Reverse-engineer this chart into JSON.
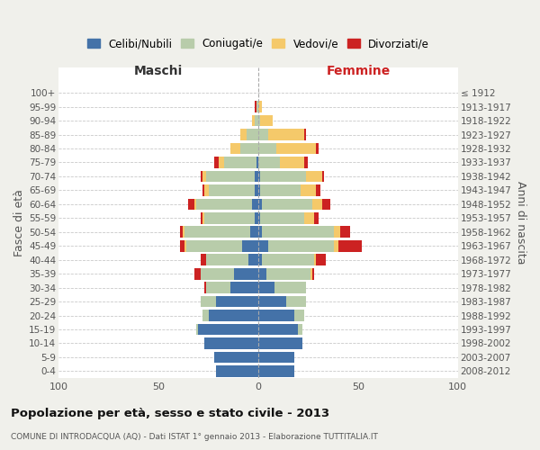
{
  "age_groups": [
    "0-4",
    "5-9",
    "10-14",
    "15-19",
    "20-24",
    "25-29",
    "30-34",
    "35-39",
    "40-44",
    "45-49",
    "50-54",
    "55-59",
    "60-64",
    "65-69",
    "70-74",
    "75-79",
    "80-84",
    "85-89",
    "90-94",
    "95-99",
    "100+"
  ],
  "birth_years": [
    "2008-2012",
    "2003-2007",
    "1998-2002",
    "1993-1997",
    "1988-1992",
    "1983-1987",
    "1978-1982",
    "1973-1977",
    "1968-1972",
    "1963-1967",
    "1958-1962",
    "1953-1957",
    "1948-1952",
    "1943-1947",
    "1938-1942",
    "1933-1937",
    "1928-1932",
    "1923-1927",
    "1918-1922",
    "1913-1917",
    "≤ 1912"
  ],
  "maschi": {
    "celibi": [
      21,
      22,
      27,
      30,
      25,
      21,
      14,
      12,
      5,
      8,
      4,
      2,
      3,
      2,
      2,
      1,
      0,
      0,
      0,
      0,
      0
    ],
    "coniugati": [
      0,
      0,
      0,
      1,
      3,
      8,
      12,
      17,
      21,
      28,
      33,
      25,
      28,
      23,
      24,
      16,
      9,
      6,
      2,
      1,
      0
    ],
    "vedovi": [
      0,
      0,
      0,
      0,
      0,
      0,
      0,
      0,
      0,
      1,
      1,
      1,
      1,
      2,
      2,
      3,
      5,
      3,
      1,
      0,
      0
    ],
    "divorziati": [
      0,
      0,
      0,
      0,
      0,
      0,
      1,
      3,
      3,
      2,
      1,
      1,
      3,
      1,
      1,
      2,
      0,
      0,
      0,
      1,
      0
    ]
  },
  "femmine": {
    "nubili": [
      18,
      18,
      22,
      20,
      18,
      14,
      8,
      4,
      2,
      5,
      2,
      1,
      2,
      1,
      1,
      0,
      0,
      0,
      0,
      0,
      0
    ],
    "coniugate": [
      0,
      0,
      0,
      2,
      5,
      10,
      16,
      22,
      26,
      33,
      36,
      22,
      25,
      20,
      23,
      11,
      9,
      5,
      1,
      0,
      0
    ],
    "vedove": [
      0,
      0,
      0,
      0,
      0,
      0,
      0,
      1,
      1,
      2,
      3,
      5,
      5,
      8,
      8,
      12,
      20,
      18,
      6,
      2,
      0
    ],
    "divorziate": [
      0,
      0,
      0,
      0,
      0,
      0,
      0,
      1,
      5,
      12,
      5,
      2,
      4,
      2,
      1,
      2,
      1,
      1,
      0,
      0,
      0
    ]
  },
  "colors": {
    "celibi_nubili": "#4472a8",
    "coniugati": "#b8ccaa",
    "vedovi": "#f5c96a",
    "divorziati": "#cc2222"
  },
  "xlim": 100,
  "title": "Popolazione per età, sesso e stato civile - 2013",
  "subtitle": "COMUNE DI INTRODACQUA (AQ) - Dati ISTAT 1° gennaio 2013 - Elaborazione TUTTITALIA.IT",
  "ylabel": "Fasce di età",
  "ylabel_right": "Anni di nascita",
  "xlabel_left": "Maschi",
  "xlabel_right": "Femmine",
  "background_color": "#f0f0eb",
  "bar_background": "#ffffff"
}
